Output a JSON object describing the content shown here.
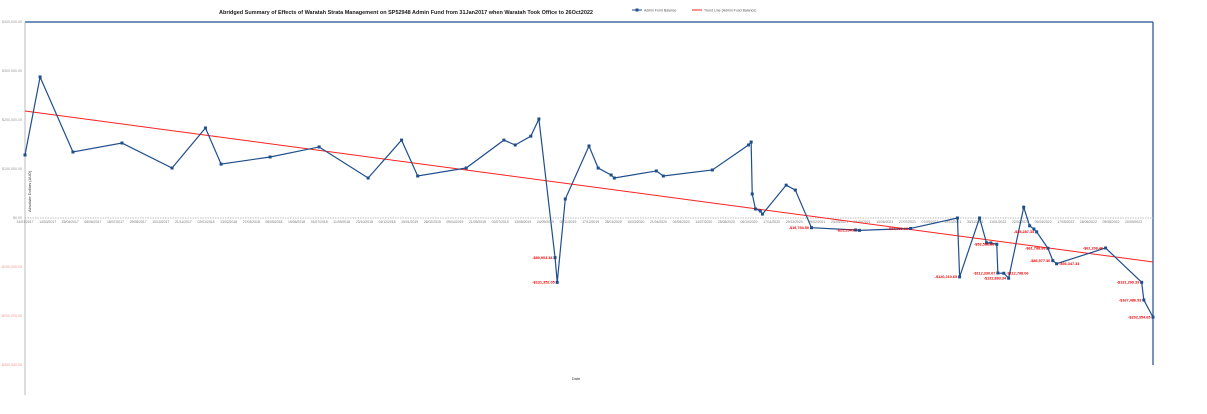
{
  "chart_data": {
    "type": "line",
    "title": "Abridged Summary of Effects of Waratah Strata Management on SP52948 Admin Fund from 31Jan2017 when Waratah Took Office to 26Oct2022",
    "xlabel": "Date",
    "ylabel": "Absolute Dollars (AUD)",
    "ylim": [
      -300000,
      400000
    ],
    "y_ticks": [
      {
        "value": 400000,
        "label": "$400,000.00"
      },
      {
        "value": 300000,
        "label": "$300,000.00"
      },
      {
        "value": 200000,
        "label": "$200,000.00"
      },
      {
        "value": 100000,
        "label": "$100,000.00"
      },
      {
        "value": 0,
        "label": "$0.00"
      },
      {
        "value": -100000,
        "label": "-$100,000.00"
      },
      {
        "value": -200000,
        "label": "-$200,000.00"
      },
      {
        "value": -300000,
        "label": "-$300,000.00"
      }
    ],
    "x_ticks": [
      "31/01/2017",
      "14/03/2017",
      "25/04/2017",
      "06/06/2017",
      "18/07/2017",
      "29/08/2017",
      "10/10/2017",
      "21/11/2017",
      "02/01/2018",
      "13/02/2018",
      "27/03/2018",
      "08/05/2018",
      "19/06/2018",
      "31/07/2018",
      "11/09/2018",
      "23/10/2018",
      "04/12/2018",
      "15/01/2019",
      "26/02/2019",
      "09/04/2019",
      "21/05/2019",
      "02/07/2019",
      "13/08/2019",
      "24/09/2019",
      "05/11/2019",
      "17/12/2019",
      "28/01/2020",
      "10/03/2020",
      "21/04/2020",
      "02/06/2020",
      "14/07/2020",
      "25/08/2020",
      "06/10/2020",
      "17/11/2020",
      "29/12/2020",
      "09/02/2021",
      "23/03/2021",
      "04/05/2021",
      "15/06/2021",
      "27/07/2021",
      "07/09/2021",
      "19/10/2021",
      "30/11/2021",
      "11/01/2022",
      "22/02/2022",
      "05/04/2022",
      "17/05/2022",
      "28/06/2022",
      "09/08/2022",
      "20/09/2022"
    ],
    "xlim": [
      "2017-01-31",
      "2022-10-26"
    ],
    "legend_position": "top-right",
    "series": [
      {
        "name": "Admin Fund Balance",
        "color": "#1f4e8c",
        "points": [
          {
            "date": "2017-01-31",
            "value": 128600
          },
          {
            "date": "2017-02-28",
            "value": 287800
          },
          {
            "date": "2017-04-30",
            "value": 134700
          },
          {
            "date": "2017-07-30",
            "value": 153000
          },
          {
            "date": "2017-10-31",
            "value": 102000
          },
          {
            "date": "2018-01-01",
            "value": 183700
          },
          {
            "date": "2018-01-30",
            "value": 110000
          },
          {
            "date": "2018-05-01",
            "value": 124500
          },
          {
            "date": "2018-07-31",
            "value": 145000
          },
          {
            "date": "2018-10-30",
            "value": 81600
          },
          {
            "date": "2018-12-31",
            "value": 159000
          },
          {
            "date": "2019-01-30",
            "value": 85700
          },
          {
            "date": "2019-04-30",
            "value": 102000
          },
          {
            "date": "2019-07-09",
            "value": 159000
          },
          {
            "date": "2019-07-30",
            "value": 149000
          },
          {
            "date": "2019-08-28",
            "value": 167000
          },
          {
            "date": "2019-09-12",
            "value": 202000
          },
          {
            "date": "2019-10-12",
            "value": -80903.34,
            "label": "-$80,903.34"
          },
          {
            "date": "2019-10-16",
            "value": -131352.05,
            "label": "-$131,352.05"
          },
          {
            "date": "2019-10-31",
            "value": 38800
          },
          {
            "date": "2019-12-14",
            "value": 147000
          },
          {
            "date": "2019-12-31",
            "value": 102000
          },
          {
            "date": "2020-01-24",
            "value": 87800
          },
          {
            "date": "2020-01-30",
            "value": 81600
          },
          {
            "date": "2020-04-17",
            "value": 96000
          },
          {
            "date": "2020-04-30",
            "value": 85700
          },
          {
            "date": "2020-07-30",
            "value": 98000
          },
          {
            "date": "2020-10-05",
            "value": 149000
          },
          {
            "date": "2020-10-10",
            "value": 155000
          },
          {
            "date": "2020-10-12",
            "value": 49000
          },
          {
            "date": "2020-10-18",
            "value": 18400
          },
          {
            "date": "2020-10-27",
            "value": 14300
          },
          {
            "date": "2020-10-31",
            "value": 8000
          },
          {
            "date": "2020-12-14",
            "value": 67000
          },
          {
            "date": "2020-12-31",
            "value": 57000
          },
          {
            "date": "2021-01-30",
            "value": -19794.5,
            "label": "-$19,794.50"
          },
          {
            "date": "2021-04-22",
            "value": -24500
          },
          {
            "date": "2021-04-29",
            "value": -25254.77,
            "label": "-$25,254.77"
          },
          {
            "date": "2021-08-02",
            "value": -21333.16,
            "label": "-$21,333.16"
          },
          {
            "date": "2021-10-28",
            "value": 0
          },
          {
            "date": "2021-11-01",
            "value": -120210.65,
            "label": "-$120,210.65"
          },
          {
            "date": "2021-12-08",
            "value": 0
          },
          {
            "date": "2021-12-21",
            "value": -50800
          },
          {
            "date": "2021-12-29",
            "value": -51000
          },
          {
            "date": "2022-01-09",
            "value": -53588.88,
            "label": "-$53,588.88"
          },
          {
            "date": "2022-01-11",
            "value": -112330.07,
            "label": "-$112,330.07"
          },
          {
            "date": "2022-01-22",
            "value": -112798.06,
            "label": "-$112,798.06"
          },
          {
            "date": "2022-01-31",
            "value": -122883.34,
            "label": "-$122,883.34"
          },
          {
            "date": "2022-02-28",
            "value": 22000
          },
          {
            "date": "2022-03-11",
            "value": -16000
          },
          {
            "date": "2022-03-19",
            "value": -22500
          },
          {
            "date": "2022-03-24",
            "value": -28287.34,
            "label": "-$28,287.34"
          },
          {
            "date": "2022-04-14",
            "value": -61788.88,
            "label": "-$61,788.88"
          },
          {
            "date": "2022-04-23",
            "value": -86977.3,
            "label": "-$86,977.30"
          },
          {
            "date": "2022-04-30",
            "value": -93347.33,
            "label": "-$93,347.33"
          },
          {
            "date": "2022-07-30",
            "value": -61206.46,
            "label": "-$61,206.46"
          },
          {
            "date": "2022-10-05",
            "value": -131299.33,
            "label": "-$131,299.33"
          },
          {
            "date": "2022-10-09",
            "value": -167486.93,
            "label": "-$167,486.93"
          },
          {
            "date": "2022-10-26",
            "value": -202354.65,
            "label": "-$202,354.65"
          }
        ]
      },
      {
        "name": "Trend Line (Admin Fund Balance)",
        "color": "#ff2020",
        "points": [
          {
            "date": "2017-01-31",
            "value": 218400
          },
          {
            "date": "2022-10-26",
            "value": -89800
          }
        ]
      }
    ]
  }
}
